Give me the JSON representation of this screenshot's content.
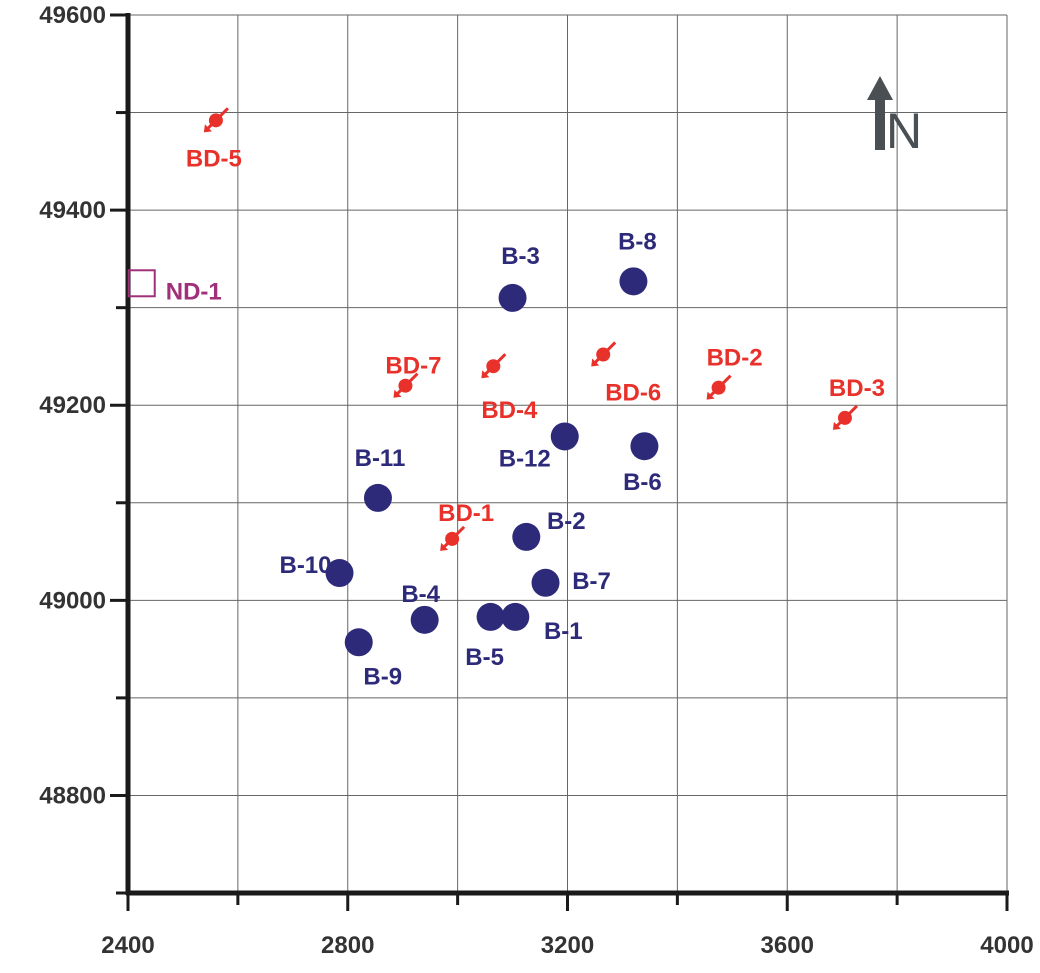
{
  "chart_data": {
    "type": "scatter",
    "title": "",
    "xlabel": "",
    "ylabel": "",
    "xlim": [
      2400,
      4000
    ],
    "ylim": [
      48700,
      49600
    ],
    "x_ticks": [
      2400,
      2800,
      3200,
      3600,
      4000
    ],
    "y_ticks": [
      48800,
      49000,
      49200,
      49400,
      49600
    ],
    "grid": true,
    "north_arrow_label": "N",
    "colors": {
      "producer": "#2e2a7a",
      "injector": "#e8312a",
      "observation": "#a0307a",
      "grid": "#666666",
      "axis": "#1a1a1a",
      "tick_text": "#333333",
      "north_arrow": "#4a4f54"
    },
    "series": [
      {
        "key": "producer",
        "points": [
          {
            "label": "B-1",
            "x": 3105,
            "y": 48983
          },
          {
            "label": "B-2",
            "x": 3125,
            "y": 49065
          },
          {
            "label": "B-3",
            "x": 3100,
            "y": 49310
          },
          {
            "label": "B-4",
            "x": 2940,
            "y": 48980
          },
          {
            "label": "B-5",
            "x": 3060,
            "y": 48983
          },
          {
            "label": "B-6",
            "x": 3340,
            "y": 49158
          },
          {
            "label": "B-7",
            "x": 3160,
            "y": 49018
          },
          {
            "label": "B-8",
            "x": 3320,
            "y": 49327
          },
          {
            "label": "B-9",
            "x": 2820,
            "y": 48957
          },
          {
            "label": "B-10",
            "x": 2785,
            "y": 49028
          },
          {
            "label": "B-11",
            "x": 2855,
            "y": 49105
          },
          {
            "label": "B-12",
            "x": 3195,
            "y": 49168
          }
        ]
      },
      {
        "key": "injector",
        "points": [
          {
            "label": "BD-1",
            "x": 2990,
            "y": 49063
          },
          {
            "label": "BD-2",
            "x": 3475,
            "y": 49218
          },
          {
            "label": "BD-3",
            "x": 3705,
            "y": 49187
          },
          {
            "label": "BD-4",
            "x": 3065,
            "y": 49240
          },
          {
            "label": "BD-5",
            "x": 2560,
            "y": 49492
          },
          {
            "label": "BD-6",
            "x": 3265,
            "y": 49252
          },
          {
            "label": "BD-7",
            "x": 2905,
            "y": 49220
          }
        ]
      },
      {
        "key": "observation",
        "points": [
          {
            "label": "ND-1",
            "x": 2425,
            "y": 49325
          }
        ]
      }
    ]
  }
}
